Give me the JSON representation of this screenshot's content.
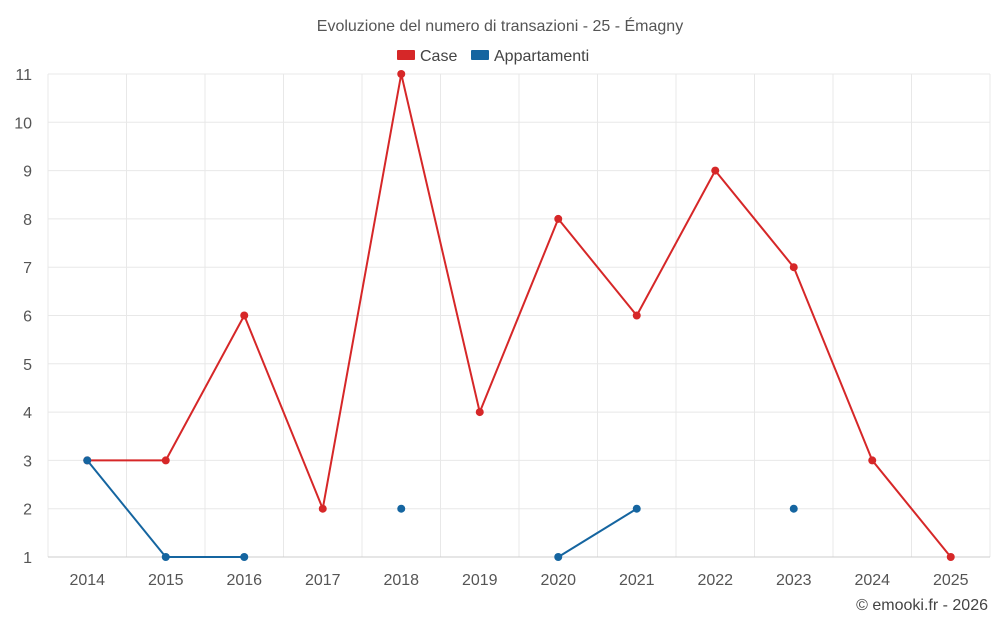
{
  "chart_data": {
    "type": "line",
    "title": "Evoluzione del numero di transazioni - 25 - Émagny",
    "categories": [
      "2014",
      "2015",
      "2016",
      "2017",
      "2018",
      "2019",
      "2020",
      "2021",
      "2022",
      "2023",
      "2024",
      "2025"
    ],
    "series": [
      {
        "name": "Case",
        "color": "#d62728",
        "values": [
          3,
          3,
          6,
          2,
          11,
          4,
          8,
          6,
          9,
          7,
          3,
          1
        ]
      },
      {
        "name": "Appartamenti",
        "color": "#1565a0",
        "values": [
          3,
          1,
          1,
          null,
          2,
          null,
          1,
          2,
          null,
          2,
          null,
          null
        ]
      }
    ],
    "ylim": [
      1,
      11
    ],
    "yticks": [
      1,
      2,
      3,
      4,
      5,
      6,
      7,
      8,
      9,
      10,
      11
    ],
    "grid": true,
    "legend_position": "top-center",
    "xlabel": "",
    "ylabel": ""
  },
  "credit": "© emooki.fr - 2026"
}
